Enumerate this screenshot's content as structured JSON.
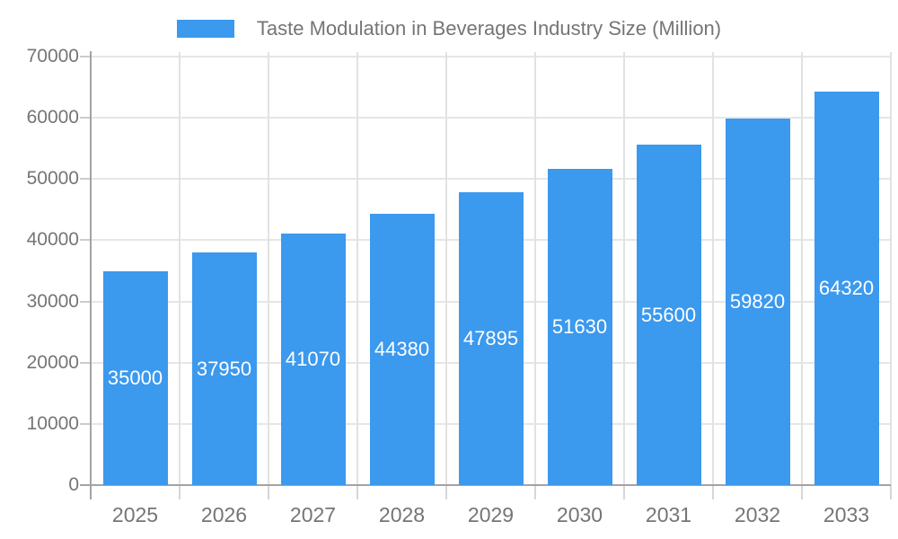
{
  "chart_data": {
    "type": "bar",
    "title": "Taste Modulation in Beverages Industry Size (Million)",
    "legend_position": "top",
    "legend_entries": [
      {
        "label": "Taste Modulation in Beverages Industry Size (Million)",
        "color": "#3b99ee"
      }
    ],
    "categories": [
      "2025",
      "2026",
      "2027",
      "2028",
      "2029",
      "2030",
      "2031",
      "2032",
      "2033"
    ],
    "values": [
      35000,
      37950,
      41070,
      44380,
      47895,
      51630,
      55600,
      59820,
      64320
    ],
    "xlabel": "",
    "ylabel": "",
    "ylim": [
      0,
      70000
    ],
    "yticks": [
      0,
      10000,
      20000,
      30000,
      40000,
      50000,
      60000,
      70000
    ],
    "grid": true,
    "colors": {
      "bar": "#3b99ee",
      "value_label": "#ffffff",
      "axis_text": "#757575",
      "h_gridline": "#e6e6e6",
      "v_gridline": "#e2e2e2",
      "axis_line": "#a3a3a3"
    }
  }
}
